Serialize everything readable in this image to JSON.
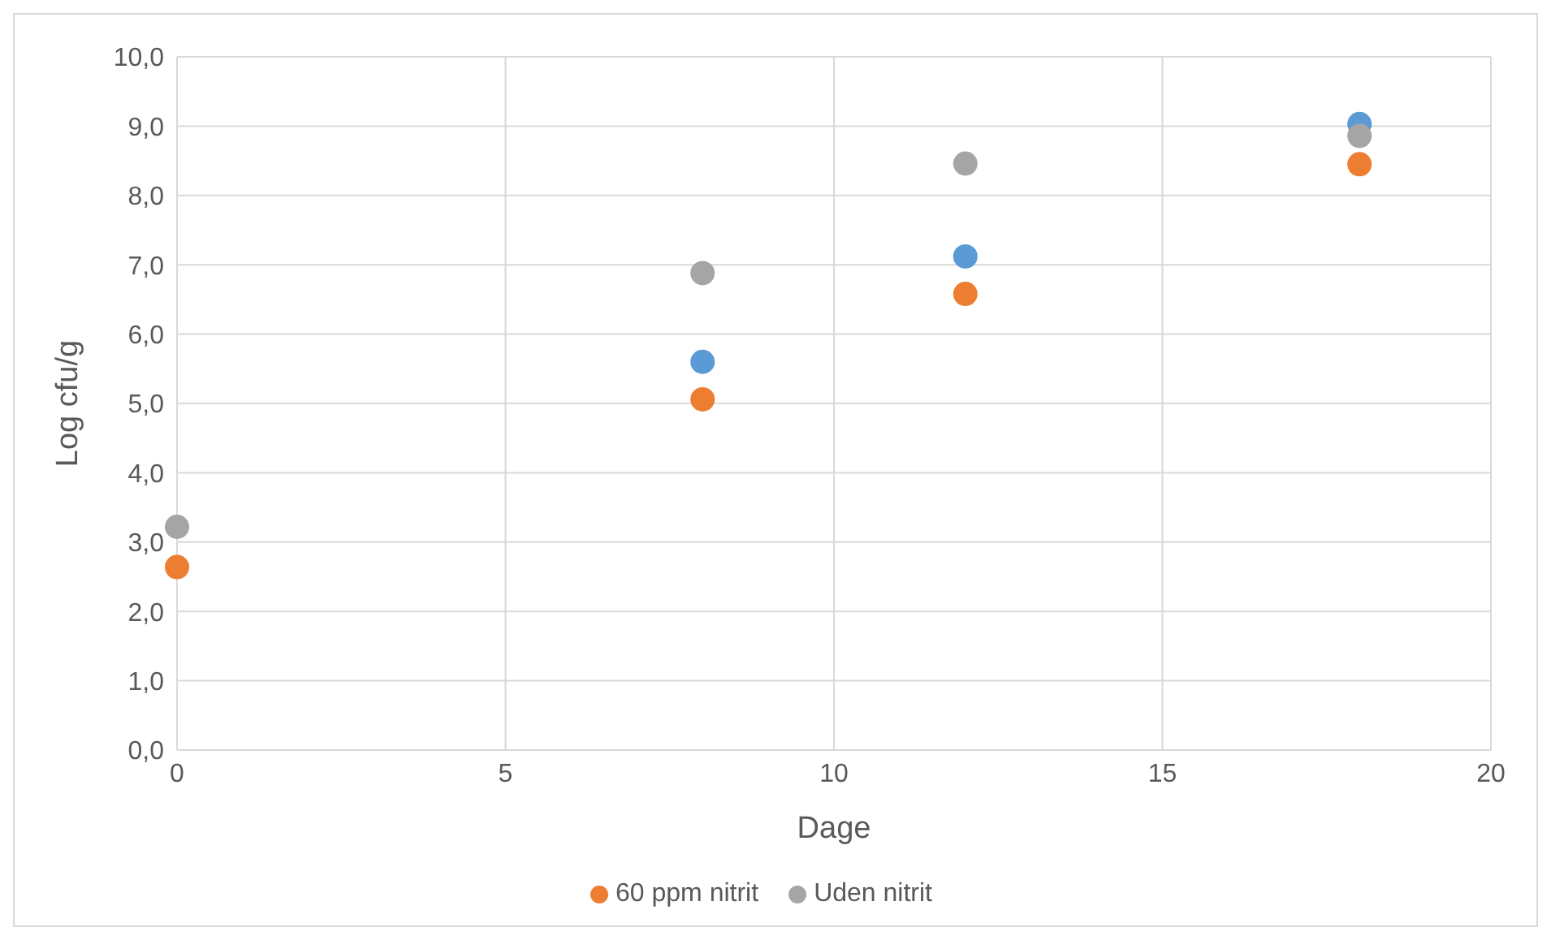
{
  "chart_data": {
    "type": "scatter",
    "xlabel": "Dage",
    "ylabel": "Log cfu/g",
    "x": [
      0,
      8,
      12,
      18
    ],
    "series": [
      {
        "color": "#5b9bd5",
        "values": [
          null,
          5.6,
          7.12,
          9.03
        ]
      },
      {
        "name": "60 ppm nitrit",
        "color": "#ed7d31",
        "values": [
          2.64,
          5.06,
          6.58,
          8.45
        ]
      },
      {
        "name": "Uden nitrit",
        "color": "#a5a5a5",
        "values": [
          3.22,
          6.88,
          8.46,
          8.86
        ]
      }
    ],
    "xlim": [
      0,
      20
    ],
    "xticks": [
      0,
      5,
      10,
      15,
      20
    ],
    "ylim": [
      0,
      10
    ],
    "yticks": [
      {
        "value": 0,
        "label": "0,0"
      },
      {
        "value": 1,
        "label": "1,0"
      },
      {
        "value": 2,
        "label": "2,0"
      },
      {
        "value": 3,
        "label": "3,0"
      },
      {
        "value": 4,
        "label": "4,0"
      },
      {
        "value": 5,
        "label": "5,0"
      },
      {
        "value": 6,
        "label": "6,0"
      },
      {
        "value": 7,
        "label": "7,0"
      },
      {
        "value": 8,
        "label": "8,0"
      },
      {
        "value": 9,
        "label": "9,0"
      },
      {
        "value": 10,
        "label": "10,0"
      }
    ],
    "grid": true,
    "legend": "bottom",
    "marker": "circle"
  }
}
